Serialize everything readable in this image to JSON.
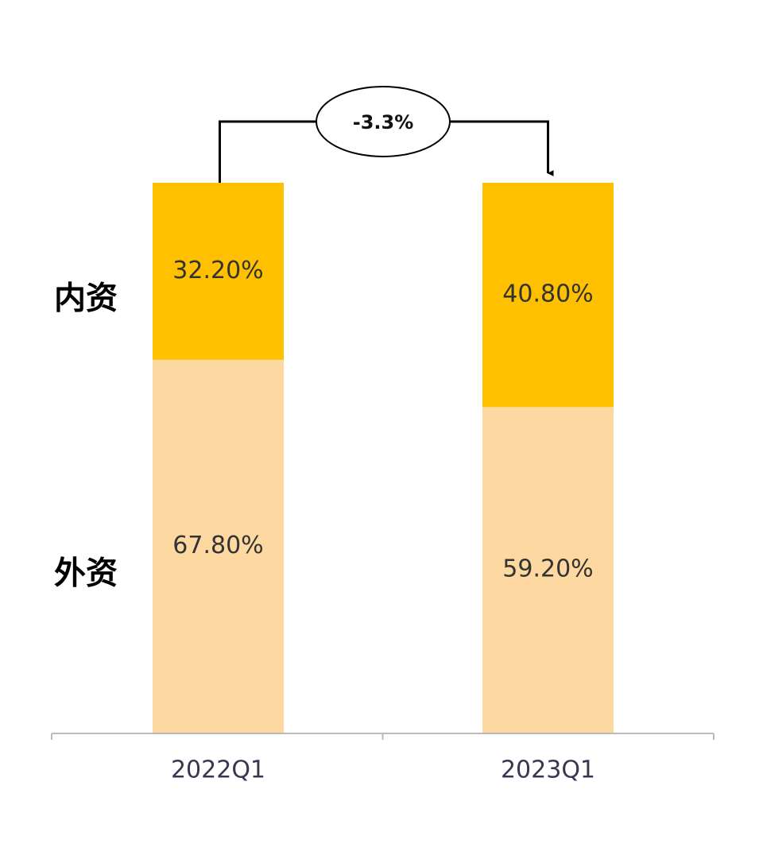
{
  "chart_data": {
    "type": "bar",
    "stacked": true,
    "categories": [
      "2022Q1",
      "2023Q1"
    ],
    "series": [
      {
        "name": "外资",
        "color": "#fdd8a0",
        "values": [
          67.8,
          59.2
        ],
        "value_labels": [
          "67.80%",
          "59.20%"
        ]
      },
      {
        "name": "内资",
        "color": "#ffc000",
        "values": [
          32.2,
          40.8
        ],
        "value_labels": [
          "32.20%",
          "40.80%"
        ]
      }
    ],
    "ylim": [
      0,
      100
    ],
    "annotation": "-3.3%"
  }
}
